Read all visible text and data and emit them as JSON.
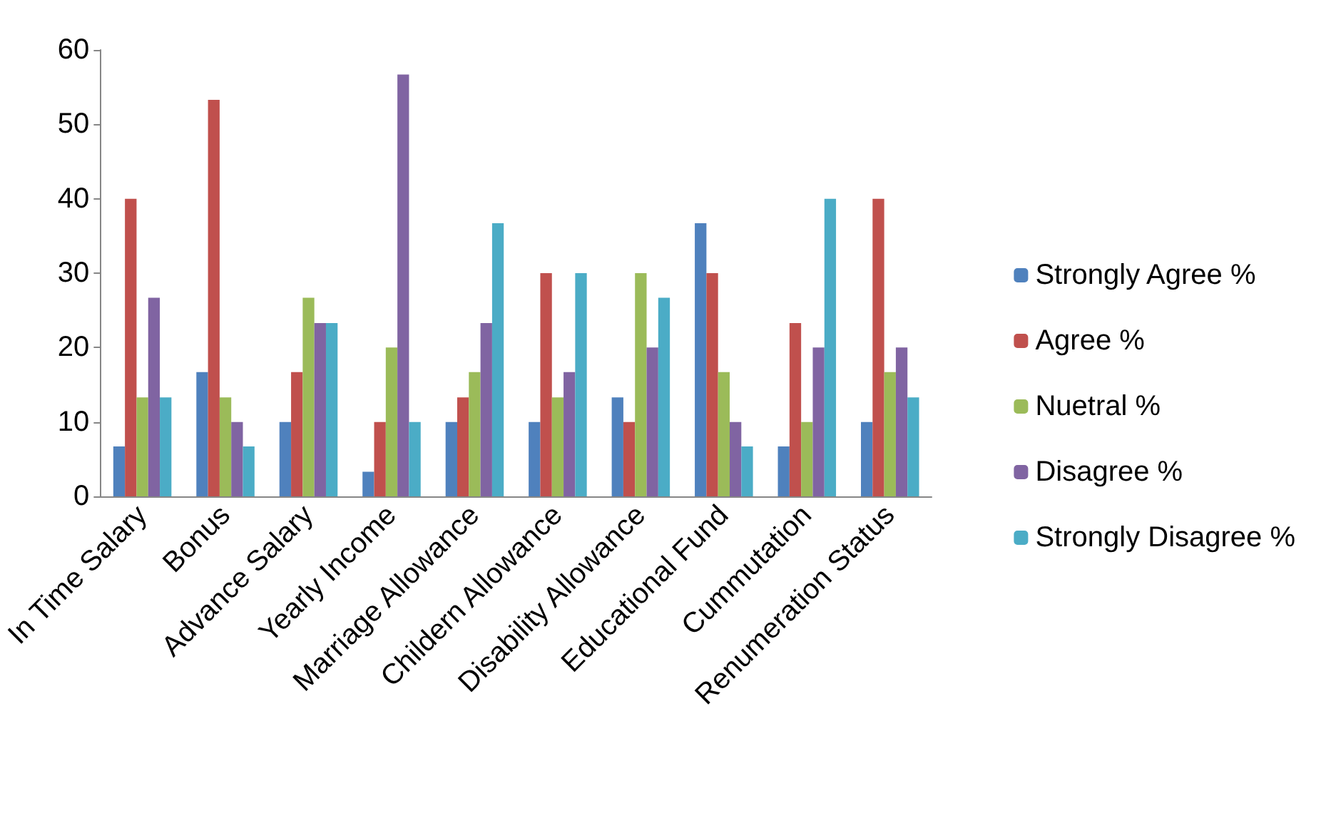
{
  "chart_data": {
    "type": "bar",
    "categories": [
      "In Time Salary",
      "Bonus",
      "Advance Salary",
      "Yearly Income",
      "Marriage Allowance",
      "Childern Allowance",
      "Disability Allowance",
      "Educational Fund",
      "Cummutation",
      "Renumeration Status"
    ],
    "series": [
      {
        "name": "Strongly Agree %",
        "color": "#4f81bd",
        "values": [
          6.7,
          16.7,
          10,
          3.3,
          10,
          10,
          13.3,
          36.7,
          6.7,
          10
        ]
      },
      {
        "name": "Agree %",
        "color": "#c0504d",
        "values": [
          40,
          53.3,
          16.7,
          10,
          13.3,
          30,
          10,
          30,
          23.3,
          40
        ]
      },
      {
        "name": "Nuetral %",
        "color": "#9bbb59",
        "values": [
          13.3,
          13.3,
          26.7,
          20,
          16.7,
          13.3,
          30,
          16.7,
          10,
          16.7
        ]
      },
      {
        "name": "Disagree %",
        "color": "#8064a2",
        "values": [
          26.7,
          10,
          23.3,
          56.7,
          23.3,
          16.7,
          20,
          10,
          20,
          20
        ]
      },
      {
        "name": "Strongly Disagree %",
        "color": "#4bacc6",
        "values": [
          13.3,
          6.7,
          23.3,
          10,
          36.7,
          30,
          26.7,
          6.7,
          40,
          13.3
        ]
      }
    ],
    "ylim": [
      0,
      60
    ],
    "yticks": [
      0,
      10,
      20,
      30,
      40,
      50,
      60
    ],
    "grid": false,
    "legend": "right"
  }
}
